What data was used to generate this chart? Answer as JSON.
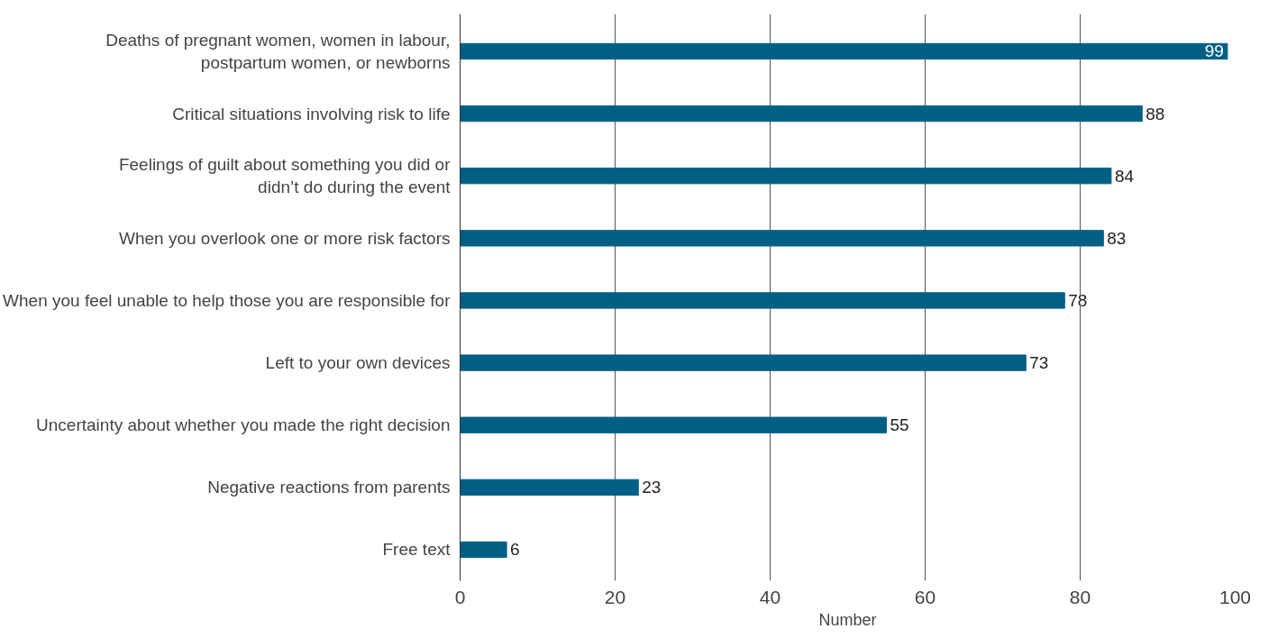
{
  "chart_data": {
    "type": "bar",
    "orientation": "horizontal",
    "xlabel": "Number",
    "categories": [
      "Deaths of pregnant women, women in labour,\npostpartum women, or newborns",
      "Critical situations involving risk to life",
      "Feelings of guilt about something you did or\ndidn’t do during the event",
      "When you overlook one or more risk factors",
      "When you feel unable to help those you are responsible for",
      "Left to your own devices",
      "Uncertainty about whether you made the right decision",
      "Negative reactions from parents",
      "Free text"
    ],
    "values": [
      99,
      88,
      84,
      83,
      78,
      73,
      55,
      23,
      6
    ],
    "color": "#005f85",
    "xlim": [
      0,
      100
    ],
    "xticks": [
      0,
      20,
      40,
      60,
      80,
      100
    ],
    "grid": "x",
    "data_labels": true
  }
}
